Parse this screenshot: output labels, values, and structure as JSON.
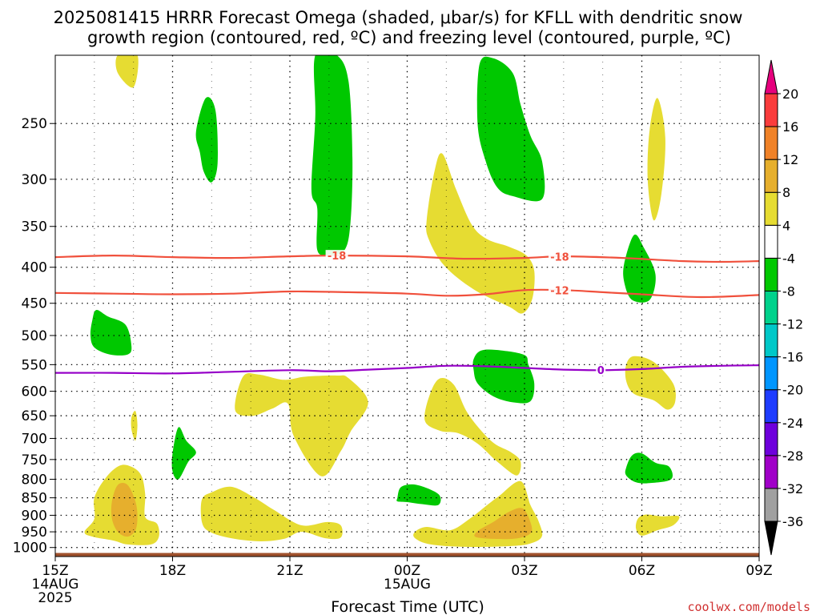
{
  "title": {
    "line1": "2025081415 HRRR Forecast Omega (shaded, μbar/s) for KFLL with dendritic snow",
    "line2": "growth region (contoured, red, ºC) and freezing level (contoured, purple, ºC)"
  },
  "xlabel": "Forecast Time (UTC)",
  "credit": "coolwx.com/models",
  "x_date_labels": [
    {
      "hour": 0,
      "lines": [
        "15Z",
        "14AUG",
        "2025"
      ]
    },
    {
      "hour": 9,
      "lines": [
        "00Z",
        "15AUG"
      ]
    }
  ],
  "chart_data": {
    "type": "heatmap",
    "x_range_hours": [
      0,
      18
    ],
    "x_ticks": [
      {
        "hour": 0,
        "label": "15Z"
      },
      {
        "hour": 3,
        "label": "18Z"
      },
      {
        "hour": 6,
        "label": "21Z"
      },
      {
        "hour": 9,
        "label": "00Z"
      },
      {
        "hour": 12,
        "label": "03Z"
      },
      {
        "hour": 15,
        "label": "06Z"
      },
      {
        "hour": 18,
        "label": "09Z"
      }
    ],
    "y_axis": "pressure (hPa), log scale, inverted",
    "y_range": [
      1030,
      200
    ],
    "y_ticks": [
      250,
      300,
      350,
      400,
      450,
      500,
      550,
      600,
      650,
      700,
      750,
      800,
      850,
      900,
      950,
      1000
    ],
    "grid": true,
    "colorbar": {
      "levels": [
        -36,
        -32,
        -28,
        -24,
        -20,
        -16,
        -12,
        -8,
        -4,
        4,
        8,
        12,
        16,
        20
      ],
      "colors": {
        "below_-36": "#000000",
        "-36_-32": "#a0a0a0",
        "-32_-28": "#a000c8",
        "-28_-24": "#6e00dc",
        "-24_-20": "#1e3cff",
        "-20_-16": "#0096ff",
        "-16_-12": "#00c8c8",
        "-12_-8": "#00d28c",
        "-8_-4": "#00c800",
        "-4_4": "#ffffff",
        "4_8": "#e6dc32",
        "8_12": "#e6af2d",
        "12_16": "#f08228",
        "16_20": "#fa3c3c",
        "above_20": "#e6007d"
      }
    },
    "omega_regions": [
      {
        "color": "#e6dc32",
        "points": [
          [
            1.6,
            200
          ],
          [
            2.1,
            200
          ],
          [
            2.0,
            222
          ],
          [
            1.6,
            212
          ]
        ]
      },
      {
        "color": "#00c800",
        "points": [
          [
            3.6,
            257
          ],
          [
            3.85,
            230
          ],
          [
            4.1,
            240
          ],
          [
            4.15,
            285
          ],
          [
            4.0,
            303
          ],
          [
            3.8,
            293
          ],
          [
            3.7,
            275
          ]
        ]
      },
      {
        "color": "#00c800",
        "points": [
          [
            6.65,
            200
          ],
          [
            7.2,
            200
          ],
          [
            7.5,
            218
          ],
          [
            7.6,
            280
          ],
          [
            7.55,
            345
          ],
          [
            7.4,
            378
          ],
          [
            7.0,
            384
          ],
          [
            6.7,
            378
          ],
          [
            6.7,
            330
          ],
          [
            6.55,
            310
          ],
          [
            6.65,
            245
          ]
        ]
      },
      {
        "color": "#00c800",
        "points": [
          [
            10.85,
            206
          ],
          [
            11.2,
            202
          ],
          [
            11.7,
            212
          ],
          [
            11.9,
            235
          ],
          [
            12.15,
            260
          ],
          [
            12.45,
            283
          ],
          [
            12.45,
            320
          ],
          [
            11.7,
            317
          ],
          [
            11.3,
            308
          ],
          [
            11.0,
            282
          ],
          [
            10.8,
            250
          ]
        ]
      },
      {
        "color": "#e6dc32",
        "points": [
          [
            9.5,
            342
          ],
          [
            9.7,
            292
          ],
          [
            9.9,
            276
          ],
          [
            10.25,
            310
          ],
          [
            10.65,
            348
          ],
          [
            11.05,
            365
          ],
          [
            11.6,
            374
          ],
          [
            12.05,
            385
          ],
          [
            12.25,
            405
          ],
          [
            12.2,
            443
          ],
          [
            11.95,
            465
          ],
          [
            11.6,
            455
          ],
          [
            10.7,
            430
          ],
          [
            9.95,
            398
          ],
          [
            9.55,
            365
          ]
        ]
      },
      {
        "color": "#e6dc32",
        "points": [
          [
            15.2,
            255
          ],
          [
            15.4,
            230
          ],
          [
            15.6,
            262
          ],
          [
            15.5,
            315
          ],
          [
            15.3,
            343
          ],
          [
            15.15,
            300
          ]
        ]
      },
      {
        "color": "#00c800",
        "points": [
          [
            14.55,
            395
          ],
          [
            14.8,
            360
          ],
          [
            15.05,
            375
          ],
          [
            15.35,
            410
          ],
          [
            15.2,
            445
          ],
          [
            14.75,
            445
          ],
          [
            14.55,
            420
          ]
        ]
      },
      {
        "color": "#00c800",
        "points": [
          [
            0.95,
            475
          ],
          [
            1.05,
            460
          ],
          [
            1.35,
            470
          ],
          [
            1.8,
            483
          ],
          [
            1.95,
            518
          ],
          [
            1.85,
            532
          ],
          [
            1.4,
            532
          ],
          [
            1.0,
            520
          ],
          [
            0.9,
            500
          ]
        ]
      },
      {
        "color": "#00c800",
        "points": [
          [
            10.7,
            540
          ],
          [
            10.9,
            525
          ],
          [
            11.4,
            525
          ],
          [
            12.0,
            533
          ],
          [
            12.1,
            550
          ],
          [
            12.25,
            585
          ],
          [
            12.15,
            620
          ],
          [
            11.7,
            622
          ],
          [
            11.2,
            610
          ],
          [
            10.8,
            585
          ],
          [
            10.7,
            560
          ]
        ]
      },
      {
        "color": "#e6dc32",
        "points": [
          [
            14.6,
            550
          ],
          [
            14.8,
            535
          ],
          [
            15.3,
            545
          ],
          [
            15.8,
            585
          ],
          [
            15.85,
            622
          ],
          [
            15.65,
            637
          ],
          [
            15.3,
            618
          ],
          [
            14.8,
            605
          ],
          [
            14.6,
            580
          ]
        ]
      },
      {
        "color": "#e6dc32",
        "points": [
          [
            4.8,
            572
          ],
          [
            5.2,
            568
          ],
          [
            5.85,
            578
          ],
          [
            6.4,
            572
          ],
          [
            7.2,
            570
          ],
          [
            7.5,
            575
          ],
          [
            8.0,
            622
          ],
          [
            7.55,
            685
          ],
          [
            7.3,
            730
          ],
          [
            6.8,
            792
          ],
          [
            6.1,
            695
          ],
          [
            5.95,
            625
          ],
          [
            5.55,
            635
          ],
          [
            5.05,
            650
          ],
          [
            4.6,
            638
          ]
        ]
      },
      {
        "color": "#e6dc32",
        "points": [
          [
            9.6,
            602
          ],
          [
            9.85,
            575
          ],
          [
            10.2,
            588
          ],
          [
            10.55,
            645
          ],
          [
            11.15,
            706
          ],
          [
            11.65,
            732
          ],
          [
            11.9,
            755
          ],
          [
            11.8,
            790
          ],
          [
            11.3,
            755
          ],
          [
            10.8,
            712
          ],
          [
            10.3,
            688
          ],
          [
            9.85,
            683
          ],
          [
            9.45,
            660
          ]
        ]
      },
      {
        "color": "#e6dc32",
        "points": [
          [
            1.95,
            653
          ],
          [
            2.05,
            640
          ],
          [
            2.1,
            670
          ],
          [
            2.05,
            705
          ],
          [
            1.95,
            680
          ]
        ]
      },
      {
        "color": "#00c800",
        "points": [
          [
            3.0,
            735
          ],
          [
            3.15,
            675
          ],
          [
            3.35,
            705
          ],
          [
            3.6,
            732
          ],
          [
            3.4,
            756
          ],
          [
            3.15,
            800
          ],
          [
            3.0,
            780
          ]
        ]
      },
      {
        "color": "#00c800",
        "points": [
          [
            14.6,
            770
          ],
          [
            14.75,
            740
          ],
          [
            15.0,
            735
          ],
          [
            15.35,
            758
          ],
          [
            15.7,
            768
          ],
          [
            15.75,
            800
          ],
          [
            15.2,
            810
          ],
          [
            14.85,
            808
          ],
          [
            14.6,
            790
          ]
        ]
      },
      {
        "color": "#00c800",
        "points": [
          [
            8.75,
            850
          ],
          [
            8.85,
            820
          ],
          [
            9.25,
            815
          ],
          [
            9.8,
            840
          ],
          [
            9.8,
            870
          ],
          [
            9.4,
            868
          ],
          [
            9.0,
            862
          ],
          [
            8.75,
            860
          ]
        ]
      },
      {
        "color": "#e6dc32",
        "points": [
          [
            1.0,
            850
          ],
          [
            1.3,
            795
          ],
          [
            1.65,
            765
          ],
          [
            1.95,
            768
          ],
          [
            2.2,
            790
          ],
          [
            2.3,
            840
          ],
          [
            2.3,
            905
          ],
          [
            2.6,
            925
          ],
          [
            2.65,
            965
          ],
          [
            2.45,
            990
          ],
          [
            1.85,
            990
          ],
          [
            1.5,
            978
          ],
          [
            0.95,
            965
          ],
          [
            0.75,
            950
          ],
          [
            1.0,
            910
          ]
        ]
      },
      {
        "color": "#e6af2d",
        "points": [
          [
            1.45,
            860
          ],
          [
            1.6,
            815
          ],
          [
            1.85,
            815
          ],
          [
            2.05,
            860
          ],
          [
            2.1,
            905
          ],
          [
            2.05,
            945
          ],
          [
            1.85,
            965
          ],
          [
            1.6,
            950
          ],
          [
            1.45,
            910
          ]
        ]
      },
      {
        "color": "#e6dc32",
        "points": [
          [
            3.75,
            855
          ],
          [
            4.0,
            835
          ],
          [
            4.5,
            820
          ],
          [
            5.1,
            850
          ],
          [
            5.6,
            885
          ],
          [
            6.3,
            930
          ],
          [
            6.95,
            920
          ],
          [
            7.3,
            930
          ],
          [
            7.3,
            968
          ],
          [
            6.9,
            970
          ],
          [
            6.3,
            950
          ],
          [
            5.85,
            972
          ],
          [
            5.25,
            980
          ],
          [
            4.5,
            970
          ],
          [
            3.95,
            950
          ],
          [
            3.75,
            920
          ]
        ]
      },
      {
        "color": "#e6dc32",
        "points": [
          [
            9.2,
            950
          ],
          [
            9.5,
            935
          ],
          [
            10.1,
            945
          ],
          [
            10.6,
            910
          ],
          [
            11.05,
            870
          ],
          [
            11.35,
            845
          ],
          [
            11.9,
            805
          ],
          [
            12.15,
            870
          ],
          [
            12.35,
            915
          ],
          [
            12.45,
            962
          ],
          [
            12.2,
            985
          ],
          [
            11.7,
            995
          ],
          [
            10.5,
            998
          ],
          [
            9.6,
            990
          ],
          [
            9.2,
            970
          ]
        ]
      },
      {
        "color": "#e6af2d",
        "points": [
          [
            10.8,
            948
          ],
          [
            11.2,
            920
          ],
          [
            11.6,
            890
          ],
          [
            11.95,
            880
          ],
          [
            12.15,
            920
          ],
          [
            12.15,
            955
          ],
          [
            11.7,
            972
          ],
          [
            10.8,
            968
          ]
        ]
      },
      {
        "color": "#e6dc32",
        "points": [
          [
            14.9,
            910
          ],
          [
            15.1,
            898
          ],
          [
            15.5,
            903
          ],
          [
            15.95,
            903
          ],
          [
            15.8,
            930
          ],
          [
            15.4,
            945
          ],
          [
            15.0,
            962
          ],
          [
            14.85,
            940
          ]
        ]
      }
    ],
    "contours": [
      {
        "name": "-18",
        "color": "#f0503c",
        "label_at_hour": [
          7.2,
          12.9
        ],
        "points": [
          [
            0,
            387
          ],
          [
            1.5,
            385
          ],
          [
            3,
            387
          ],
          [
            4.5,
            388
          ],
          [
            6,
            386
          ],
          [
            7.2,
            385
          ],
          [
            9,
            386
          ],
          [
            10.5,
            389
          ],
          [
            12,
            388
          ],
          [
            13,
            386
          ],
          [
            14.5,
            388
          ],
          [
            16,
            392
          ],
          [
            17,
            393
          ],
          [
            18,
            392
          ]
        ]
      },
      {
        "name": "-12",
        "color": "#f0503c",
        "label_at_hour": [
          12.9
        ],
        "points": [
          [
            0,
            435
          ],
          [
            1.5,
            436
          ],
          [
            3,
            437
          ],
          [
            4.5,
            436
          ],
          [
            6,
            433
          ],
          [
            7.5,
            434
          ],
          [
            9,
            436
          ],
          [
            10,
            439
          ],
          [
            11,
            437
          ],
          [
            12,
            431
          ],
          [
            13,
            431
          ],
          [
            14,
            434
          ],
          [
            15,
            437
          ],
          [
            16.5,
            441
          ],
          [
            18,
            438
          ]
        ]
      },
      {
        "name": "0",
        "color": "#9600c8",
        "label_at_hour": [
          13.95
        ],
        "points": [
          [
            0,
            565
          ],
          [
            1.5,
            565
          ],
          [
            3,
            566
          ],
          [
            4.5,
            563
          ],
          [
            6,
            560
          ],
          [
            7,
            562
          ],
          [
            8,
            559
          ],
          [
            9,
            556
          ],
          [
            10,
            552
          ],
          [
            11,
            553
          ],
          [
            12,
            556
          ],
          [
            13,
            559
          ],
          [
            14,
            560
          ],
          [
            15,
            558
          ],
          [
            16,
            554
          ],
          [
            17,
            552
          ],
          [
            18,
            551
          ]
        ]
      }
    ],
    "terrain": {
      "color": "#a0522d",
      "top_hpa": 1018,
      "bottom_hpa": 1030
    }
  }
}
